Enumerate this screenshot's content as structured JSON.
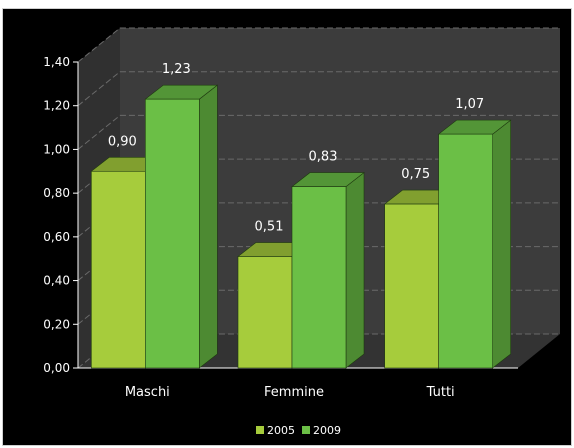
{
  "chart_data": {
    "type": "bar",
    "categories": [
      "Maschi",
      "Femmine",
      "Tutti"
    ],
    "series": [
      {
        "name": "2005",
        "values": [
          0.9,
          0.51,
          0.75
        ],
        "value_labels": [
          "0,90",
          "0,51",
          "0,75"
        ],
        "color": "#a6cc3c"
      },
      {
        "name": "2009",
        "values": [
          1.23,
          0.83,
          1.07
        ],
        "value_labels": [
          "1,23",
          "0,83",
          "1,07"
        ],
        "color": "#6bbf46"
      }
    ],
    "ylim": [
      0,
      1.4
    ],
    "yticks": [
      0,
      0.2,
      0.4,
      0.6,
      0.8,
      1.0,
      1.2,
      1.4
    ],
    "ytick_labels": [
      "0,00",
      "0,20",
      "0,40",
      "0,60",
      "0,80",
      "1,00",
      "1,20",
      "1,40"
    ],
    "grid": true,
    "legend": "bottom",
    "title": "",
    "xlabel": "",
    "ylabel": "",
    "background": "#000000",
    "plot_wall_color": "#3c3c3c",
    "grid_color": "#6a6a6a"
  }
}
